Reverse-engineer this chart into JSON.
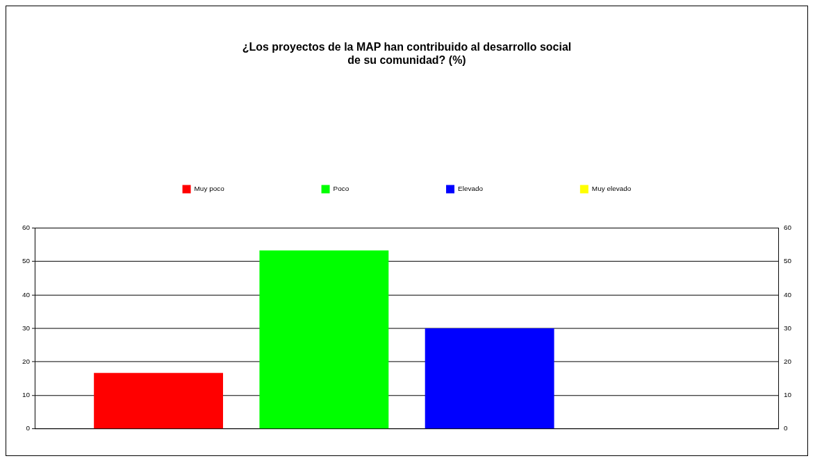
{
  "chart_data": {
    "type": "bar",
    "title": "¿Los proyectos de la MAP han contribuido al desarrollo social de su comunidad? (%)",
    "categories": [
      null
    ],
    "series": [
      {
        "name": "Muy poco",
        "color": "#ff0000",
        "values": [
          16.7
        ]
      },
      {
        "name": "Poco",
        "color": "#00ff00",
        "values": [
          53.3
        ]
      },
      {
        "name": "Elevado",
        "color": "#0000ff",
        "values": [
          30
        ]
      },
      {
        "name": "Muy elevado",
        "color": "#ffff00",
        "values": [
          0
        ]
      }
    ],
    "ylim": [
      0,
      60
    ],
    "yticks": [
      0,
      10,
      20,
      30,
      40,
      50,
      60
    ],
    "y2lim": [
      0,
      60
    ],
    "y2ticks": [
      0,
      10,
      20,
      30,
      40,
      50,
      60
    ],
    "grid": "y",
    "legend": "top"
  }
}
